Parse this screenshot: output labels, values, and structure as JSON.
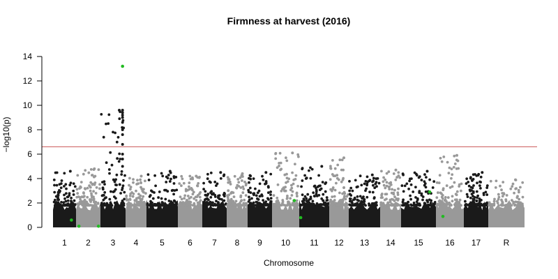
{
  "chart_data": {
    "type": "scatter",
    "title": "Firmness at harvest (2016)",
    "xlabel": "Chromosome",
    "ylabel": "−log10(p)",
    "ylim": [
      0,
      14
    ],
    "yticks": [
      0,
      2,
      4,
      6,
      8,
      10,
      12,
      14
    ],
    "grid": false,
    "threshold": {
      "value": 6.6,
      "color": "#cd5c5c"
    },
    "colors": {
      "odd": "#1a1a1a",
      "even": "#999999",
      "highlight": "#22bb22"
    },
    "chromosomes": [
      {
        "label": "1",
        "peak": 4.6
      },
      {
        "label": "2",
        "peak": 4.8
      },
      {
        "label": "3",
        "peak": 9.6
      },
      {
        "label": "4",
        "peak": 4.2
      },
      {
        "label": "5",
        "peak": 4.6
      },
      {
        "label": "6",
        "peak": 4.2
      },
      {
        "label": "7",
        "peak": 4.5
      },
      {
        "label": "8",
        "peak": 4.4
      },
      {
        "label": "9",
        "peak": 4.5
      },
      {
        "label": "10",
        "peak": 6.1
      },
      {
        "label": "11",
        "peak": 5.0
      },
      {
        "label": "12",
        "peak": 5.7
      },
      {
        "label": "13",
        "peak": 4.3
      },
      {
        "label": "14",
        "peak": 4.7
      },
      {
        "label": "15",
        "peak": 4.6
      },
      {
        "label": "16",
        "peak": 5.9
      },
      {
        "label": "17",
        "peak": 4.5
      },
      {
        "label": "R",
        "peak": 3.9
      }
    ],
    "highlighted_snps": [
      {
        "chrom": "1",
        "pos": 0.8,
        "y": 0.6
      },
      {
        "chrom": "2",
        "pos": 0.12,
        "y": 0.1
      },
      {
        "chrom": "2",
        "pos": 0.92,
        "y": 0.1
      },
      {
        "chrom": "3",
        "pos": 0.88,
        "y": 13.2
      },
      {
        "chrom": "10",
        "pos": 0.82,
        "y": 2.2
      },
      {
        "chrom": "11",
        "pos": 0.05,
        "y": 0.8
      },
      {
        "chrom": "15",
        "pos": 0.82,
        "y": 2.9
      },
      {
        "chrom": "16",
        "pos": 0.25,
        "y": 0.9
      }
    ]
  }
}
